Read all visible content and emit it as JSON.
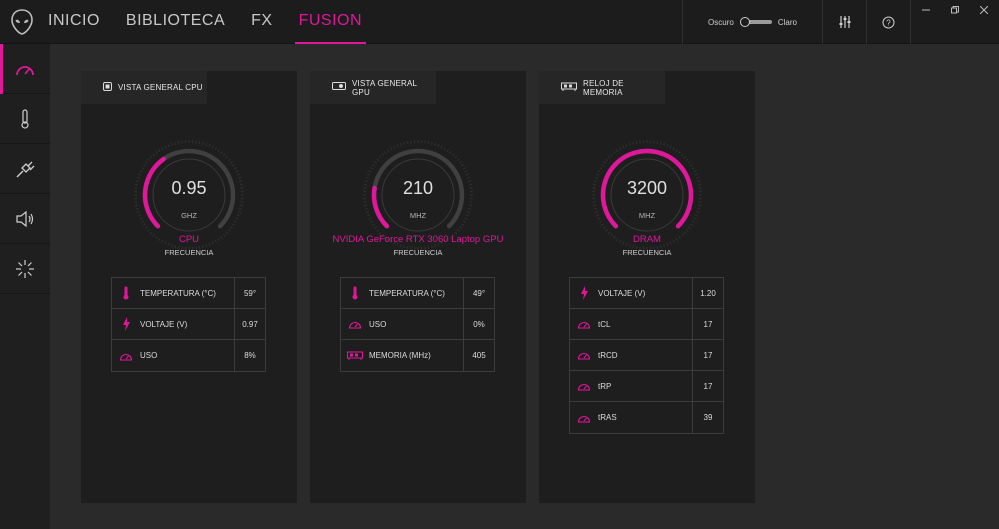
{
  "nav": {
    "items": [
      "INICIO",
      "BIBLIOTECA",
      "FX",
      "FUSION"
    ],
    "active": "FUSION"
  },
  "theme": {
    "dark_label": "Oscuro",
    "light_label": "Claro"
  },
  "colors": {
    "accent": "#e0179b",
    "background": "#2a2a2a",
    "card": "#1e1e1e",
    "topbar": "#1c1c1c"
  },
  "sidebar": {
    "items": [
      "gauge-icon",
      "thermometer-icon",
      "power-plug-icon",
      "speaker-icon",
      "light-burst-icon"
    ],
    "active": 0
  },
  "cards": [
    {
      "title": "VISTA GENERAL CPU",
      "icon": "chip-icon",
      "gauge": {
        "value": "0.95",
        "unit": "GHZ",
        "name": "CPU",
        "sub": "FRECUENCIA",
        "fill_fraction": 0.37
      },
      "stats": [
        {
          "icon": "thermometer-icon",
          "label": "TEMPERATURA (°C)",
          "value": "59°"
        },
        {
          "icon": "bolt-icon",
          "label": "VOLTAJE (V)",
          "value": "0.97"
        },
        {
          "icon": "gauge-icon",
          "label": "USO",
          "value": "8%"
        }
      ]
    },
    {
      "title": "VISTA GENERAL GPU",
      "icon": "gpu-card-icon",
      "gauge": {
        "value": "210",
        "unit": "MHZ",
        "name": "NVIDIA GeForce RTX 3060 Laptop GPU",
        "sub": "FRECUENCIA",
        "fill_fraction": 0.2
      },
      "stats": [
        {
          "icon": "thermometer-icon",
          "label": "TEMPERATURA (°C)",
          "value": "49°"
        },
        {
          "icon": "gauge-icon",
          "label": "USO",
          "value": "0%"
        },
        {
          "icon": "memory-icon",
          "label": "MEMORIA (MHz)",
          "value": "405"
        }
      ]
    },
    {
      "title": "RELOJ DE MEMORIA",
      "icon": "memory-icon",
      "gauge": {
        "value": "3200",
        "unit": "MHZ",
        "name": "DRAM",
        "sub": "FRECUENCIA",
        "fill_fraction": 1.0
      },
      "stats": [
        {
          "icon": "bolt-icon",
          "label": "VOLTAJE (V)",
          "value": "1.20"
        },
        {
          "icon": "gauge-icon",
          "label": "tCL",
          "value": "17"
        },
        {
          "icon": "gauge-icon",
          "label": "tRCD",
          "value": "17"
        },
        {
          "icon": "gauge-icon",
          "label": "tRP",
          "value": "17"
        },
        {
          "icon": "gauge-icon",
          "label": "tRAS",
          "value": "39"
        }
      ]
    }
  ]
}
